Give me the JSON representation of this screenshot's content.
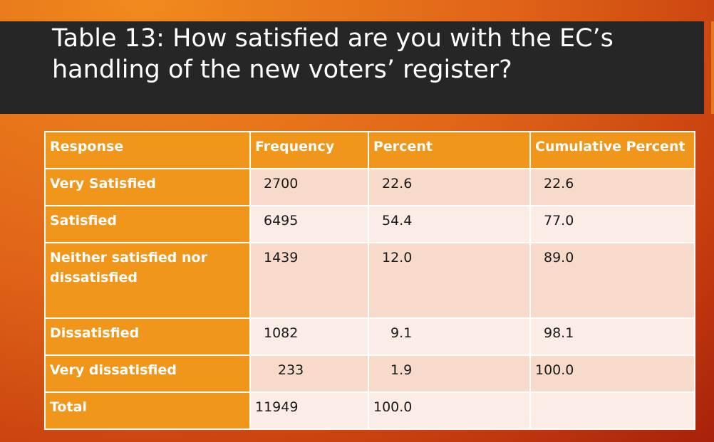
{
  "slide": {
    "title": "Table 13: How satisfied are you with the EC’s handling of the new voters’ register?"
  },
  "table": {
    "headers": [
      "Response",
      "Frequency",
      "Percent",
      "Cumulative Percent"
    ],
    "rows": [
      {
        "response": "Very Satisfied",
        "frequency": "2700",
        "percent": "22.6",
        "cumulative": "22.6"
      },
      {
        "response": "Satisfied",
        "frequency": "6495",
        "percent": "54.4",
        "cumulative": "77.0"
      },
      {
        "response": "Neither satisfied nor dissatisfied",
        "frequency": "1439",
        "percent": "12.0",
        "cumulative": "89.0"
      },
      {
        "response": "Dissatisfied",
        "frequency": "1082",
        "percent": "9.1",
        "cumulative": "98.1"
      },
      {
        "response": "Very dissatisfied",
        "frequency": "233",
        "percent": "1.9",
        "cumulative": "100.0"
      },
      {
        "response": "Total",
        "frequency": "11949",
        "percent": "100.0",
        "cumulative": ""
      }
    ]
  },
  "colors": {
    "header_fill": "#f0961b",
    "row_odd": "#f8dacb",
    "row_even": "#fbece5",
    "title_band": "#262626"
  }
}
